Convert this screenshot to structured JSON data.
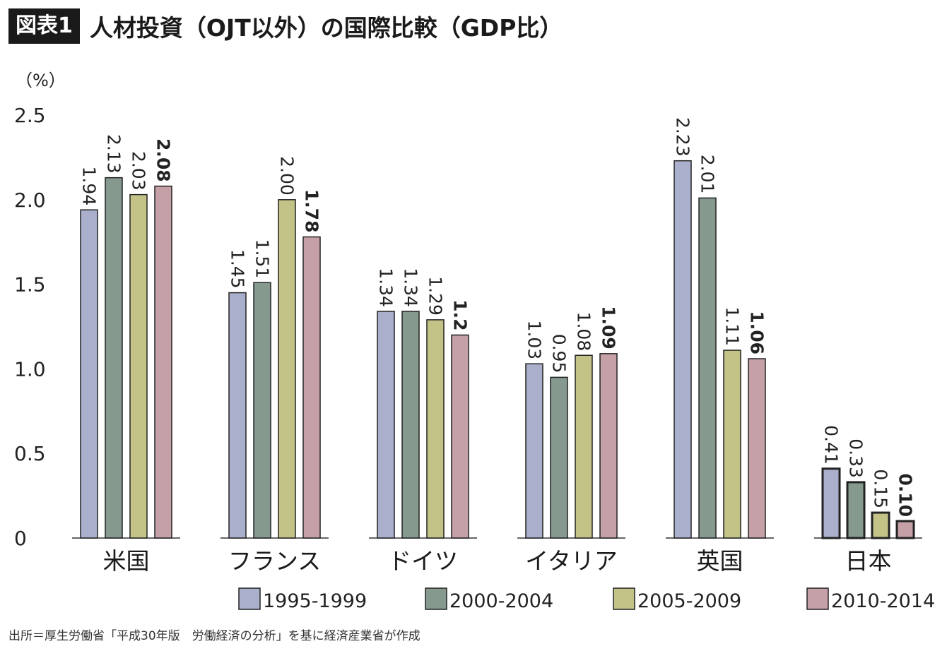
{
  "header": {
    "badge": "図表1",
    "title": "人材投資（OJT以外）の国際比較（GDP比）"
  },
  "source": "出所＝厚生労働省「平成30年版　労働経済の分析」を基に経済産業省が作成",
  "chart_data": {
    "type": "bar",
    "ylabel": "（%）",
    "ylim": [
      0,
      2.5
    ],
    "yticks": [
      {
        "value": 0,
        "label": "0"
      },
      {
        "value": 0.5,
        "label": "0.5"
      },
      {
        "value": 1.0,
        "label": "1.0"
      },
      {
        "value": 1.5,
        "label": "1.5"
      },
      {
        "value": 2.0,
        "label": "2.0"
      },
      {
        "value": 2.5,
        "label": "2.5"
      }
    ],
    "categories": [
      "米国",
      "フランス",
      "ドイツ",
      "イタリア",
      "英国",
      "日本"
    ],
    "series": [
      {
        "name": "1995-1999",
        "color": "#aab0cc",
        "values": [
          1.94,
          1.45,
          1.34,
          1.03,
          2.23,
          0.41
        ],
        "labels": [
          "1.94",
          "1.45",
          "1.34",
          "1.03",
          "2.23",
          "0.41"
        ]
      },
      {
        "name": "2000-2004",
        "color": "#85998f",
        "values": [
          2.13,
          1.51,
          1.34,
          0.95,
          2.01,
          0.33
        ],
        "labels": [
          "2.13",
          "1.51",
          "1.34",
          "0.95",
          "2.01",
          "0.33"
        ]
      },
      {
        "name": "2005-2009",
        "color": "#c3c388",
        "values": [
          2.03,
          2.0,
          1.29,
          1.08,
          1.11,
          0.15
        ],
        "labels": [
          "2.03",
          "2.00",
          "1.29",
          "1.08",
          "1.11",
          "0.15"
        ]
      },
      {
        "name": "2010-2014",
        "color": "#c5a0a6",
        "bold_labels": true,
        "values": [
          2.08,
          1.78,
          1.2,
          1.09,
          1.06,
          0.1
        ],
        "labels": [
          "2.08",
          "1.78",
          "1.2",
          "1.09",
          "1.06",
          "0.10"
        ]
      }
    ],
    "grid": false,
    "legend": "bottom"
  }
}
